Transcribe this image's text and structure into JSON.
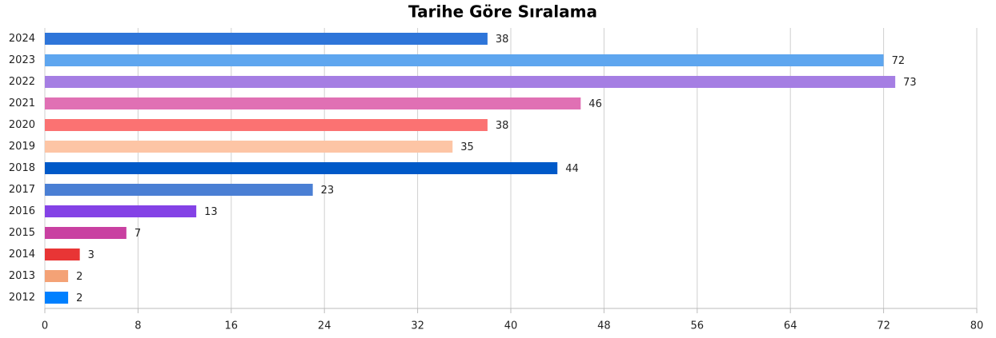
{
  "chart_data": {
    "type": "bar",
    "orientation": "horizontal",
    "title": "Tarihe Göre Sıralama",
    "categories": [
      "2024",
      "2023",
      "2022",
      "2021",
      "2020",
      "2019",
      "2018",
      "2017",
      "2016",
      "2015",
      "2014",
      "2013",
      "2012"
    ],
    "values": [
      38,
      72,
      73,
      46,
      38,
      35,
      44,
      23,
      13,
      7,
      3,
      2,
      2
    ],
    "colors": [
      "#2e75d9",
      "#5ea6ef",
      "#a57ee3",
      "#e070b4",
      "#fb7272",
      "#fdc5a5",
      "#0059c8",
      "#4a7fd4",
      "#8442e6",
      "#c940a1",
      "#e83535",
      "#f4a276",
      "#0080ff"
    ],
    "xlim": [
      0,
      80
    ],
    "xticks": [
      0,
      8,
      16,
      24,
      32,
      40,
      48,
      56,
      64,
      72,
      80
    ],
    "grid": true
  }
}
